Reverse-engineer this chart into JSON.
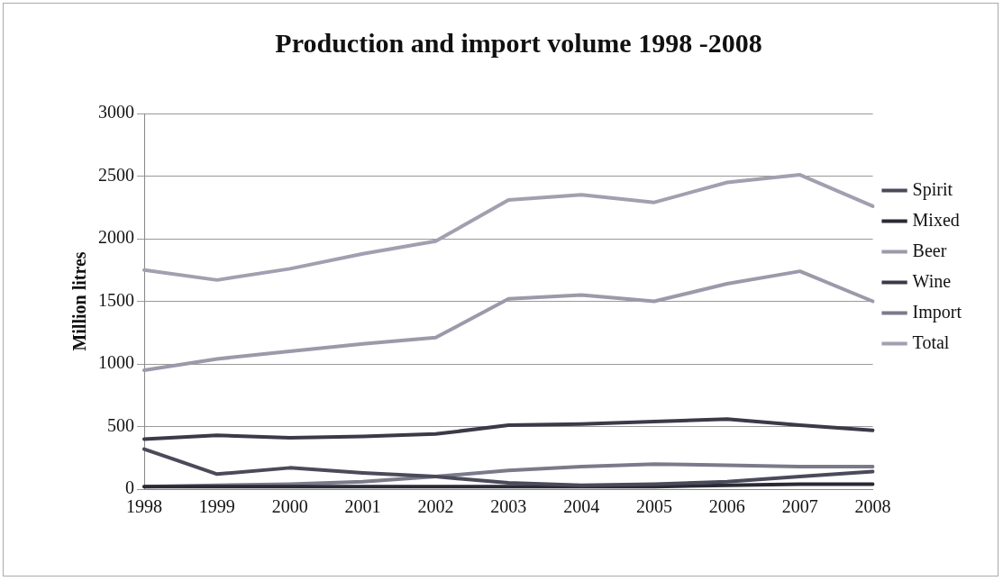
{
  "chart_data": {
    "type": "line",
    "title": "Production and import volume 1998 -2008",
    "ylabel": "Million litres",
    "categories": [
      "1998",
      "1999",
      "2000",
      "2001",
      "2002",
      "2003",
      "2004",
      "2005",
      "2006",
      "2007",
      "2008"
    ],
    "series": [
      {
        "name": "Spirit",
        "color": "#4a4a5a",
        "values": [
          320,
          120,
          170,
          130,
          100,
          50,
          30,
          40,
          60,
          100,
          140
        ]
      },
      {
        "name": "Mixed",
        "color": "#2a2a35",
        "values": [
          20,
          20,
          20,
          20,
          20,
          20,
          20,
          20,
          30,
          40,
          40
        ]
      },
      {
        "name": "Beer",
        "color": "#9a9aaa",
        "values": [
          950,
          1040,
          1100,
          1160,
          1210,
          1520,
          1550,
          1500,
          1640,
          1740,
          1500
        ]
      },
      {
        "name": "Wine",
        "color": "#3a3a48",
        "values": [
          400,
          430,
          410,
          420,
          440,
          510,
          520,
          540,
          560,
          510,
          470
        ]
      },
      {
        "name": "Import",
        "color": "#7a7a8a",
        "values": [
          20,
          30,
          40,
          60,
          100,
          150,
          180,
          200,
          190,
          180,
          180
        ]
      },
      {
        "name": "Total",
        "color": "#a0a0b0",
        "values": [
          1750,
          1670,
          1760,
          1880,
          1980,
          2310,
          2350,
          2290,
          2450,
          2510,
          2260
        ]
      }
    ],
    "ylim": [
      0,
      3000
    ],
    "yticks": [
      0,
      500,
      1000,
      1500,
      2000,
      2500,
      3000
    ],
    "grid": "y",
    "legend": "right",
    "marker": "none",
    "line_style": "solid"
  }
}
